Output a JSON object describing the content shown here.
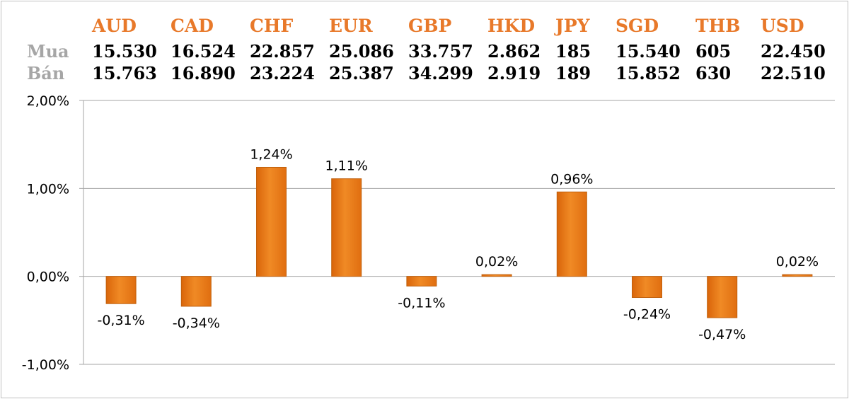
{
  "rate_table": {
    "row_labels": {
      "buy": "Mua",
      "sell": "Bán"
    },
    "currencies": [
      {
        "code": "AUD",
        "buy": "15.530",
        "sell": "15.763"
      },
      {
        "code": "CAD",
        "buy": "16.524",
        "sell": "16.890"
      },
      {
        "code": "CHF",
        "buy": "22.857",
        "sell": "23.224"
      },
      {
        "code": "EUR",
        "buy": "25.086",
        "sell": "25.387"
      },
      {
        "code": "GBP",
        "buy": "33.757",
        "sell": "34.299"
      },
      {
        "code": "HKD",
        "buy": "2.862",
        "sell": "2.919"
      },
      {
        "code": "JPY",
        "buy": "185",
        "sell": "189"
      },
      {
        "code": "SGD",
        "buy": "15.540",
        "sell": "15.852"
      },
      {
        "code": "THB",
        "buy": "605",
        "sell": "630"
      },
      {
        "code": "USD",
        "buy": "22.450",
        "sell": "22.510"
      }
    ]
  },
  "colors": {
    "currency_header": "#e8792a",
    "row_label": "#a6a6a6",
    "bar_fill": "#e8730f",
    "bar_fill_light": "#f59a3c",
    "bar_stroke": "#c0600c",
    "grid": "#a6a6a6"
  },
  "chart_data": {
    "type": "bar",
    "categories": [
      "AUD",
      "CAD",
      "CHF",
      "EUR",
      "GBP",
      "HKD",
      "JPY",
      "SGD",
      "THB",
      "USD"
    ],
    "values": [
      -0.31,
      -0.34,
      1.24,
      1.11,
      -0.11,
      0.02,
      0.96,
      -0.24,
      -0.47,
      0.02
    ],
    "data_labels": [
      "-0,31%",
      "-0,34%",
      "1,24%",
      "1,11%",
      "-0,11%",
      "0,02%",
      "0,96%",
      "-0,24%",
      "-0,47%",
      "0,02%"
    ],
    "ylim": [
      -1,
      2
    ],
    "yticks": [
      2,
      1,
      0,
      -1
    ],
    "ytick_labels": [
      "2,00%",
      "1,00%",
      "0,00%",
      "-1,00%"
    ],
    "grid": true,
    "legend": false,
    "title": "",
    "xlabel": "",
    "ylabel": ""
  }
}
